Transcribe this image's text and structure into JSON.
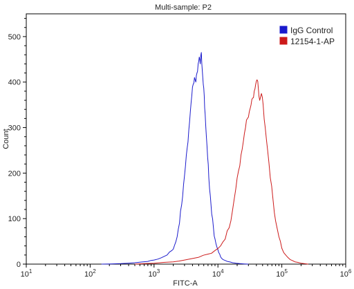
{
  "chart_data": {
    "type": "line",
    "title": "Multi-sample: P2",
    "xlabel": "FITC-A",
    "ylabel": "Count",
    "x_scale": "log",
    "xlim": [
      10,
      1000000
    ],
    "ylim": [
      0,
      550
    ],
    "x_ticks": [
      {
        "value": 10,
        "base": "10",
        "exp": "1"
      },
      {
        "value": 100,
        "base": "10",
        "exp": "2"
      },
      {
        "value": 1000,
        "base": "10",
        "exp": "3"
      },
      {
        "value": 10000,
        "base": "10",
        "exp": "4"
      },
      {
        "value": 100000,
        "base": "10",
        "exp": "5"
      },
      {
        "value": 1000000,
        "base": "10",
        "exp": "6"
      }
    ],
    "y_ticks": [
      0,
      100,
      200,
      300,
      400,
      500
    ],
    "grid": false,
    "legend_position": "top-right",
    "series": [
      {
        "name": "IgG Control",
        "color": "#1a1acc",
        "x": [
          150,
          300,
          500,
          800,
          1000,
          1300,
          1600,
          1900,
          2100,
          2300,
          2500,
          2700,
          2900,
          3100,
          3300,
          3500,
          3700,
          3900,
          4100,
          4300,
          4500,
          4700,
          4900,
          5100,
          5300,
          5500,
          5700,
          5900,
          6100,
          6300,
          6600,
          6900,
          7200,
          7600,
          8000,
          8500,
          9000,
          9600,
          10300,
          11000,
          12000,
          14000,
          17000,
          22000,
          30000
        ],
        "y": [
          0,
          1,
          3,
          6,
          9,
          14,
          20,
          30,
          42,
          60,
          90,
          130,
          175,
          215,
          255,
          295,
          335,
          370,
          395,
          410,
          400,
          420,
          440,
          455,
          440,
          465,
          425,
          395,
          370,
          330,
          280,
          235,
          190,
          150,
          110,
          80,
          55,
          38,
          25,
          16,
          10,
          6,
          3,
          1,
          0
        ]
      },
      {
        "name": "12154-1-AP",
        "color": "#cc1a1a",
        "x": [
          500,
          1000,
          2000,
          3000,
          5000,
          7000,
          9000,
          11000,
          13000,
          15000,
          17000,
          19000,
          21000,
          23000,
          25000,
          27000,
          29000,
          31000,
          33000,
          35000,
          37000,
          39000,
          41000,
          43000,
          45000,
          48000,
          51000,
          55000,
          60000,
          66000,
          73000,
          80000,
          90000,
          100000,
          115000,
          135000,
          160000,
          200000,
          260000
        ],
        "y": [
          0,
          2,
          5,
          9,
          15,
          22,
          30,
          40,
          55,
          80,
          120,
          165,
          205,
          240,
          270,
          300,
          320,
          335,
          350,
          365,
          380,
          395,
          405,
          385,
          360,
          375,
          350,
          300,
          250,
          190,
          140,
          95,
          60,
          35,
          20,
          10,
          5,
          2,
          0
        ]
      }
    ]
  }
}
